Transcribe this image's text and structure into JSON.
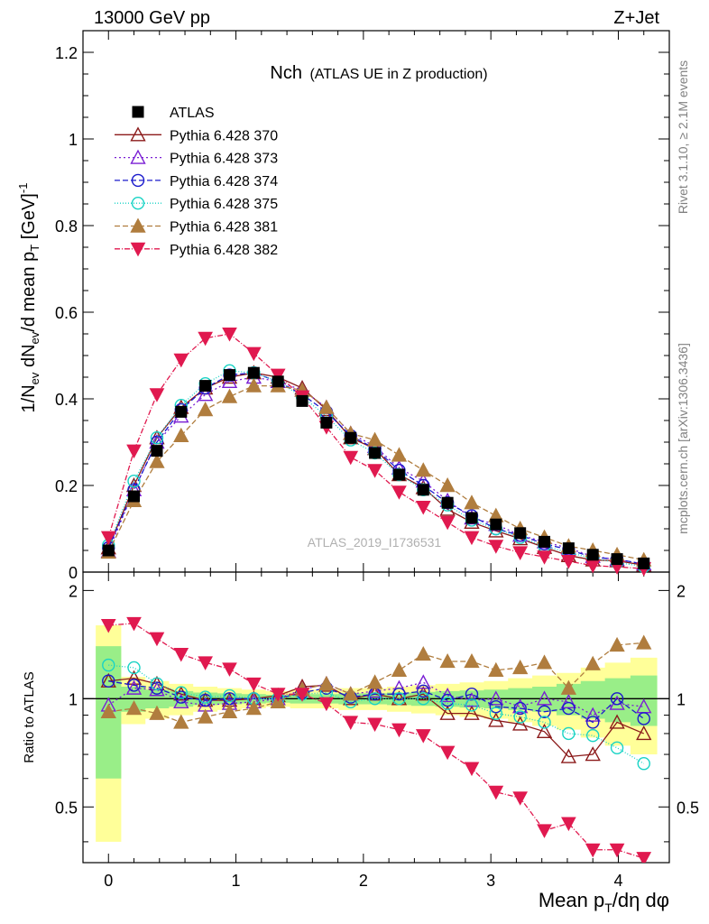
{
  "header": {
    "left": "13000 GeV pp",
    "right": "Z+Jet"
  },
  "side_labels": {
    "rivet": "Rivet 3.1.10, ≥ 2.1M events",
    "mcplots": "mcplots.cern.ch [arXiv:1306.3436]"
  },
  "watermark": "ATLAS_2019_I1736531",
  "chart_data": {
    "type": "line",
    "title_main": "Nch",
    "title_sub": "(ATLAS UE in Z production)",
    "xlabel": "Mean pT/dη dφ",
    "ylabel": "1/Nev dNev/d mean pT [GeV]-1",
    "ratio_ylabel": "Ratio to ATLAS",
    "xlim": [
      -0.2,
      4.4
    ],
    "ylim": [
      0,
      1.25
    ],
    "ratio_ylim": [
      0.35,
      2.25
    ],
    "x_ticks": [
      "0",
      "1",
      "2",
      "3",
      "4"
    ],
    "y_ticks": [
      "0",
      "0.2",
      "0.4",
      "0.6",
      "0.8",
      "1",
      "1.2"
    ],
    "ratio_ticks": [
      "0.5",
      "1",
      "2"
    ],
    "x": [
      0,
      0.2,
      0.38,
      0.57,
      0.76,
      0.95,
      1.14,
      1.33,
      1.52,
      1.71,
      1.9,
      2.09,
      2.28,
      2.47,
      2.66,
      2.85,
      3.04,
      3.23,
      3.42,
      3.61,
      3.8,
      3.99,
      4.2
    ],
    "data": [
      0.05,
      0.175,
      0.28,
      0.37,
      0.43,
      0.455,
      0.46,
      0.44,
      0.395,
      0.345,
      0.31,
      0.275,
      0.225,
      0.19,
      0.16,
      0.125,
      0.11,
      0.09,
      0.07,
      0.055,
      0.04,
      0.03,
      0.02
    ],
    "band_outer": [
      0.6,
      0.15,
      0.12,
      0.1,
      0.08,
      0.07,
      0.06,
      0.05,
      0.06,
      0.06,
      0.07,
      0.07,
      0.08,
      0.09,
      0.1,
      0.11,
      0.12,
      0.14,
      0.16,
      0.18,
      0.22,
      0.26,
      0.3
    ],
    "band_inner": [
      0.4,
      0.08,
      0.06,
      0.05,
      0.04,
      0.035,
      0.03,
      0.025,
      0.03,
      0.03,
      0.035,
      0.035,
      0.04,
      0.045,
      0.05,
      0.055,
      0.06,
      0.07,
      0.08,
      0.1,
      0.12,
      0.14,
      0.16
    ],
    "series": [
      {
        "name": "ATLAS",
        "color": "#000000",
        "marker": "square",
        "dash": "none",
        "values": [
          0.05,
          0.175,
          0.28,
          0.37,
          0.43,
          0.455,
          0.46,
          0.44,
          0.395,
          0.345,
          0.31,
          0.275,
          0.225,
          0.19,
          0.16,
          0.125,
          0.11,
          0.09,
          0.07,
          0.055,
          0.04,
          0.03,
          0.02
        ]
      },
      {
        "name": "Pythia 6.428 370",
        "color": "#8b1a1a",
        "marker": "tri-up-open",
        "dash": "none",
        "values": [
          0.056,
          0.2,
          0.31,
          0.38,
          0.425,
          0.45,
          0.46,
          0.45,
          0.425,
          0.375,
          0.31,
          0.285,
          0.225,
          0.195,
          0.145,
          0.115,
          0.095,
          0.077,
          0.057,
          0.038,
          0.028,
          0.026,
          0.016
        ],
        "ratio": [
          1.12,
          1.14,
          1.1,
          1.03,
          0.99,
          0.99,
          1.0,
          1.02,
          1.08,
          1.09,
          1.0,
          1.03,
          1.0,
          1.03,
          0.91,
          0.91,
          0.87,
          0.85,
          0.81,
          0.69,
          0.7,
          0.86,
          0.8
        ]
      },
      {
        "name": "Pythia 6.428 373",
        "color": "#7a1fd4",
        "marker": "tri-up-open",
        "dash": "2,3",
        "values": [
          0.048,
          0.19,
          0.3,
          0.36,
          0.41,
          0.44,
          0.45,
          0.44,
          0.42,
          0.38,
          0.32,
          0.29,
          0.24,
          0.21,
          0.165,
          0.125,
          0.11,
          0.085,
          0.07,
          0.055,
          0.036,
          0.029,
          0.019
        ],
        "ratio": [
          0.96,
          1.07,
          1.06,
          0.98,
          0.96,
          0.97,
          0.98,
          1.0,
          1.06,
          1.1,
          1.03,
          1.05,
          1.07,
          1.11,
          1.02,
          0.99,
          1.0,
          0.95,
          1.0,
          0.98,
          0.9,
          0.97,
          0.95
        ]
      },
      {
        "name": "Pythia 6.428 374",
        "color": "#1a1acc",
        "marker": "circle-open",
        "dash": "6,3",
        "values": [
          0.056,
          0.19,
          0.3,
          0.375,
          0.425,
          0.455,
          0.46,
          0.44,
          0.41,
          0.37,
          0.315,
          0.285,
          0.235,
          0.2,
          0.16,
          0.13,
          0.1,
          0.085,
          0.065,
          0.052,
          0.034,
          0.03,
          0.018
        ],
        "ratio": [
          1.12,
          1.09,
          1.07,
          1.01,
          0.99,
          1.0,
          1.0,
          1.0,
          1.04,
          1.07,
          1.01,
          1.03,
          1.03,
          1.05,
          0.99,
          1.03,
          0.95,
          0.94,
          0.92,
          0.94,
          0.86,
          1.0,
          0.88
        ]
      },
      {
        "name": "Pythia 6.428 375",
        "color": "#19d3c5",
        "marker": "circle-open",
        "dash": "1,2",
        "values": [
          0.062,
          0.21,
          0.31,
          0.385,
          0.435,
          0.465,
          0.46,
          0.44,
          0.405,
          0.36,
          0.305,
          0.275,
          0.225,
          0.19,
          0.155,
          0.12,
          0.1,
          0.08,
          0.06,
          0.045,
          0.032,
          0.022,
          0.013
        ],
        "ratio": [
          1.24,
          1.22,
          1.1,
          1.04,
          1.01,
          1.02,
          1.0,
          1.0,
          1.03,
          1.04,
          0.98,
          1.0,
          1.0,
          1.0,
          0.97,
          0.96,
          0.91,
          0.89,
          0.86,
          0.8,
          0.79,
          0.73,
          0.66
        ]
      },
      {
        "name": "Pythia 6.428 381",
        "color": "#b07d3e",
        "marker": "tri-up",
        "dash": "6,3",
        "values": [
          0.046,
          0.165,
          0.255,
          0.315,
          0.375,
          0.405,
          0.43,
          0.43,
          0.42,
          0.38,
          0.32,
          0.305,
          0.27,
          0.235,
          0.2,
          0.16,
          0.13,
          0.1,
          0.08,
          0.06,
          0.05,
          0.04,
          0.028
        ],
        "ratio": [
          0.92,
          0.94,
          0.91,
          0.86,
          0.89,
          0.92,
          0.94,
          0.98,
          1.06,
          1.1,
          1.03,
          1.11,
          1.2,
          1.33,
          1.27,
          1.27,
          1.2,
          1.22,
          1.26,
          1.07,
          1.25,
          1.41,
          1.43
        ]
      },
      {
        "name": "Pythia 6.428 382",
        "color": "#e0194f",
        "marker": "tri-down",
        "dash": "6,2,1,2",
        "values": [
          0.08,
          0.28,
          0.41,
          0.49,
          0.54,
          0.55,
          0.505,
          0.455,
          0.405,
          0.335,
          0.265,
          0.235,
          0.185,
          0.15,
          0.115,
          0.08,
          0.06,
          0.045,
          0.035,
          0.025,
          0.015,
          0.012,
          0.008
        ],
        "ratio": [
          1.6,
          1.62,
          1.47,
          1.33,
          1.26,
          1.21,
          1.1,
          1.03,
          1.03,
          0.97,
          0.86,
          0.85,
          0.82,
          0.79,
          0.71,
          0.64,
          0.55,
          0.53,
          0.43,
          0.45,
          0.38,
          0.38,
          0.36
        ]
      }
    ]
  }
}
